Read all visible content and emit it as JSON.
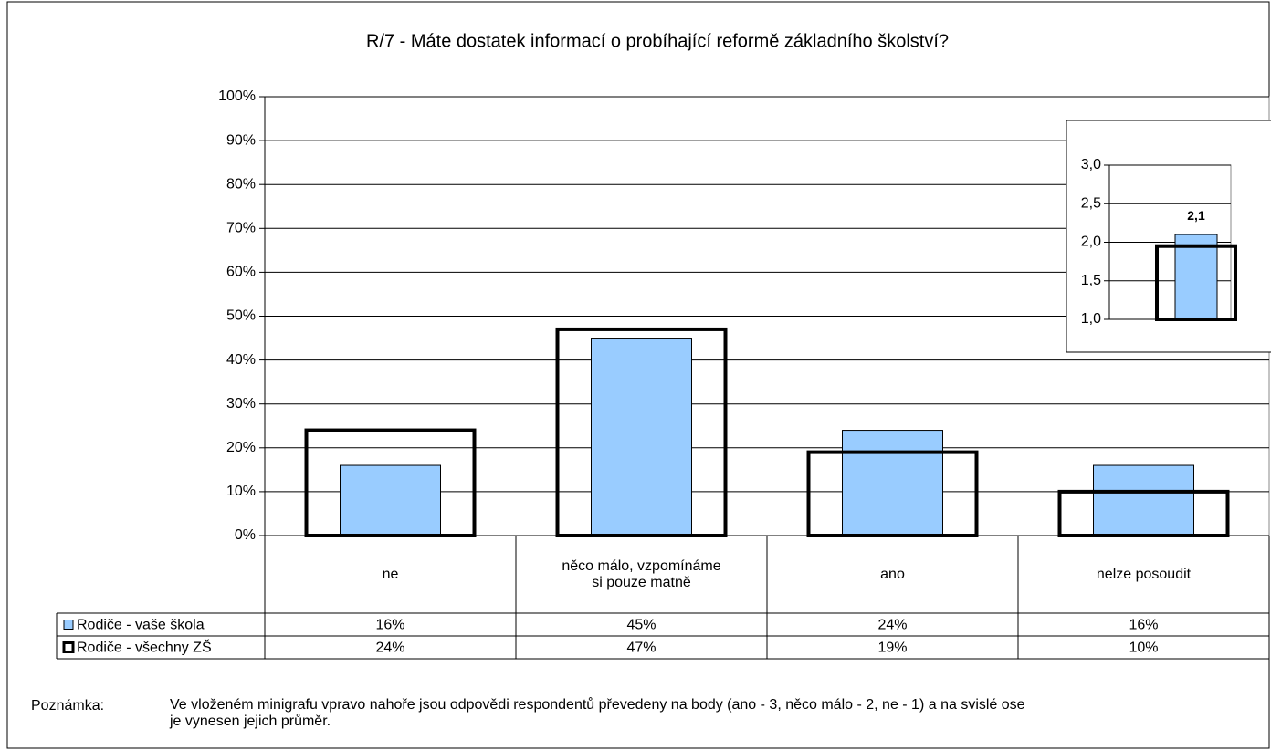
{
  "chart_data": [
    {
      "type": "bar",
      "title": "R/7 - Máte dostatek informací o probíhající reformě základního školství?",
      "categories": [
        "ne",
        "něco málo, vzpomínáme si pouze matně",
        "ano",
        "nelze posoudit"
      ],
      "series": [
        {
          "name": "Rodiče - vaše škola",
          "color": "#99ccff",
          "values": [
            16,
            45,
            24,
            16
          ],
          "value_labels": [
            "16%",
            "45%",
            "24%",
            "16%"
          ]
        },
        {
          "name": "Rodiče - všechny ZŠ",
          "color": "#000000",
          "values": [
            24,
            47,
            19,
            10
          ],
          "value_labels": [
            "24%",
            "47%",
            "19%",
            "10%"
          ]
        }
      ],
      "ylim": [
        0,
        100
      ],
      "yticks": [
        {
          "value": 0,
          "label": "0%"
        },
        {
          "value": 10,
          "label": "10%"
        },
        {
          "value": 20,
          "label": "20%"
        },
        {
          "value": 30,
          "label": "30%"
        },
        {
          "value": 40,
          "label": "40%"
        },
        {
          "value": 50,
          "label": "50%"
        },
        {
          "value": 60,
          "label": "60%"
        },
        {
          "value": 70,
          "label": "70%"
        },
        {
          "value": 80,
          "label": "80%"
        },
        {
          "value": 90,
          "label": "90%"
        },
        {
          "value": 100,
          "label": "100%"
        }
      ],
      "grid": true,
      "note_label": "Poznámka:",
      "note": "Ve vloženém minigrafu vpravo nahoře jsou odpovědi respondentů převedeny na body (ano - 3, něco málo - 2, ne - 1) a na svislé ose je vynesen jejich průměr."
    },
    {
      "type": "bar",
      "series": [
        {
          "color": "#99ccff",
          "values": [
            2.1
          ],
          "value_labels": [
            "2,1"
          ]
        },
        {
          "color": "#000000",
          "values": [
            1.95
          ]
        }
      ],
      "ylim": [
        1,
        3
      ],
      "yticks": [
        {
          "value": 1,
          "label": "1,0"
        },
        {
          "value": 1.5,
          "label": "1,5"
        },
        {
          "value": 2,
          "label": "2,0"
        },
        {
          "value": 2.5,
          "label": "2,5"
        },
        {
          "value": 3,
          "label": "3,0"
        }
      ],
      "grid": true
    }
  ]
}
